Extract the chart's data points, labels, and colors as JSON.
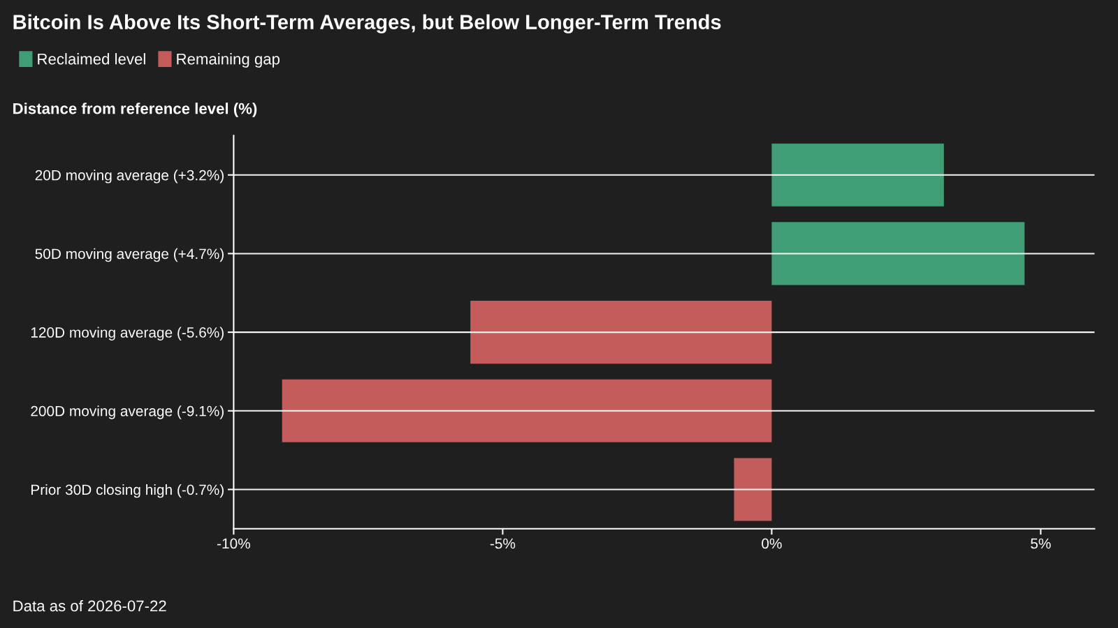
{
  "chart_data": {
    "type": "bar",
    "orientation": "horizontal",
    "title": "Bitcoin Is Above Its Short-Term Averages, but Below Longer-Term Trends",
    "subtitle": "Distance from reference level (%)",
    "categories": [
      "20D moving average (+3.2%)",
      "50D moving average (+4.7%)",
      "120D moving average (-5.6%)",
      "200D moving average (-9.1%)",
      "Prior 30D closing high (-0.7%)"
    ],
    "series": [
      {
        "name": "Reclaimed level",
        "color": "#3f9e74",
        "values": [
          3.2,
          4.7,
          null,
          null,
          null
        ]
      },
      {
        "name": "Remaining gap",
        "color": "#c45c5c",
        "values": [
          null,
          null,
          -5.6,
          -9.1,
          -0.7
        ]
      }
    ],
    "xlim": [
      -10,
      6
    ],
    "xticks": [
      {
        "value": -10,
        "label": "-10%"
      },
      {
        "value": -5,
        "label": "-5%"
      },
      {
        "value": 0,
        "label": "0%"
      },
      {
        "value": 5,
        "label": "5%"
      }
    ],
    "grid": "y",
    "legend": "top left",
    "annotations": [
      "Data as of 2026-07-22"
    ]
  }
}
